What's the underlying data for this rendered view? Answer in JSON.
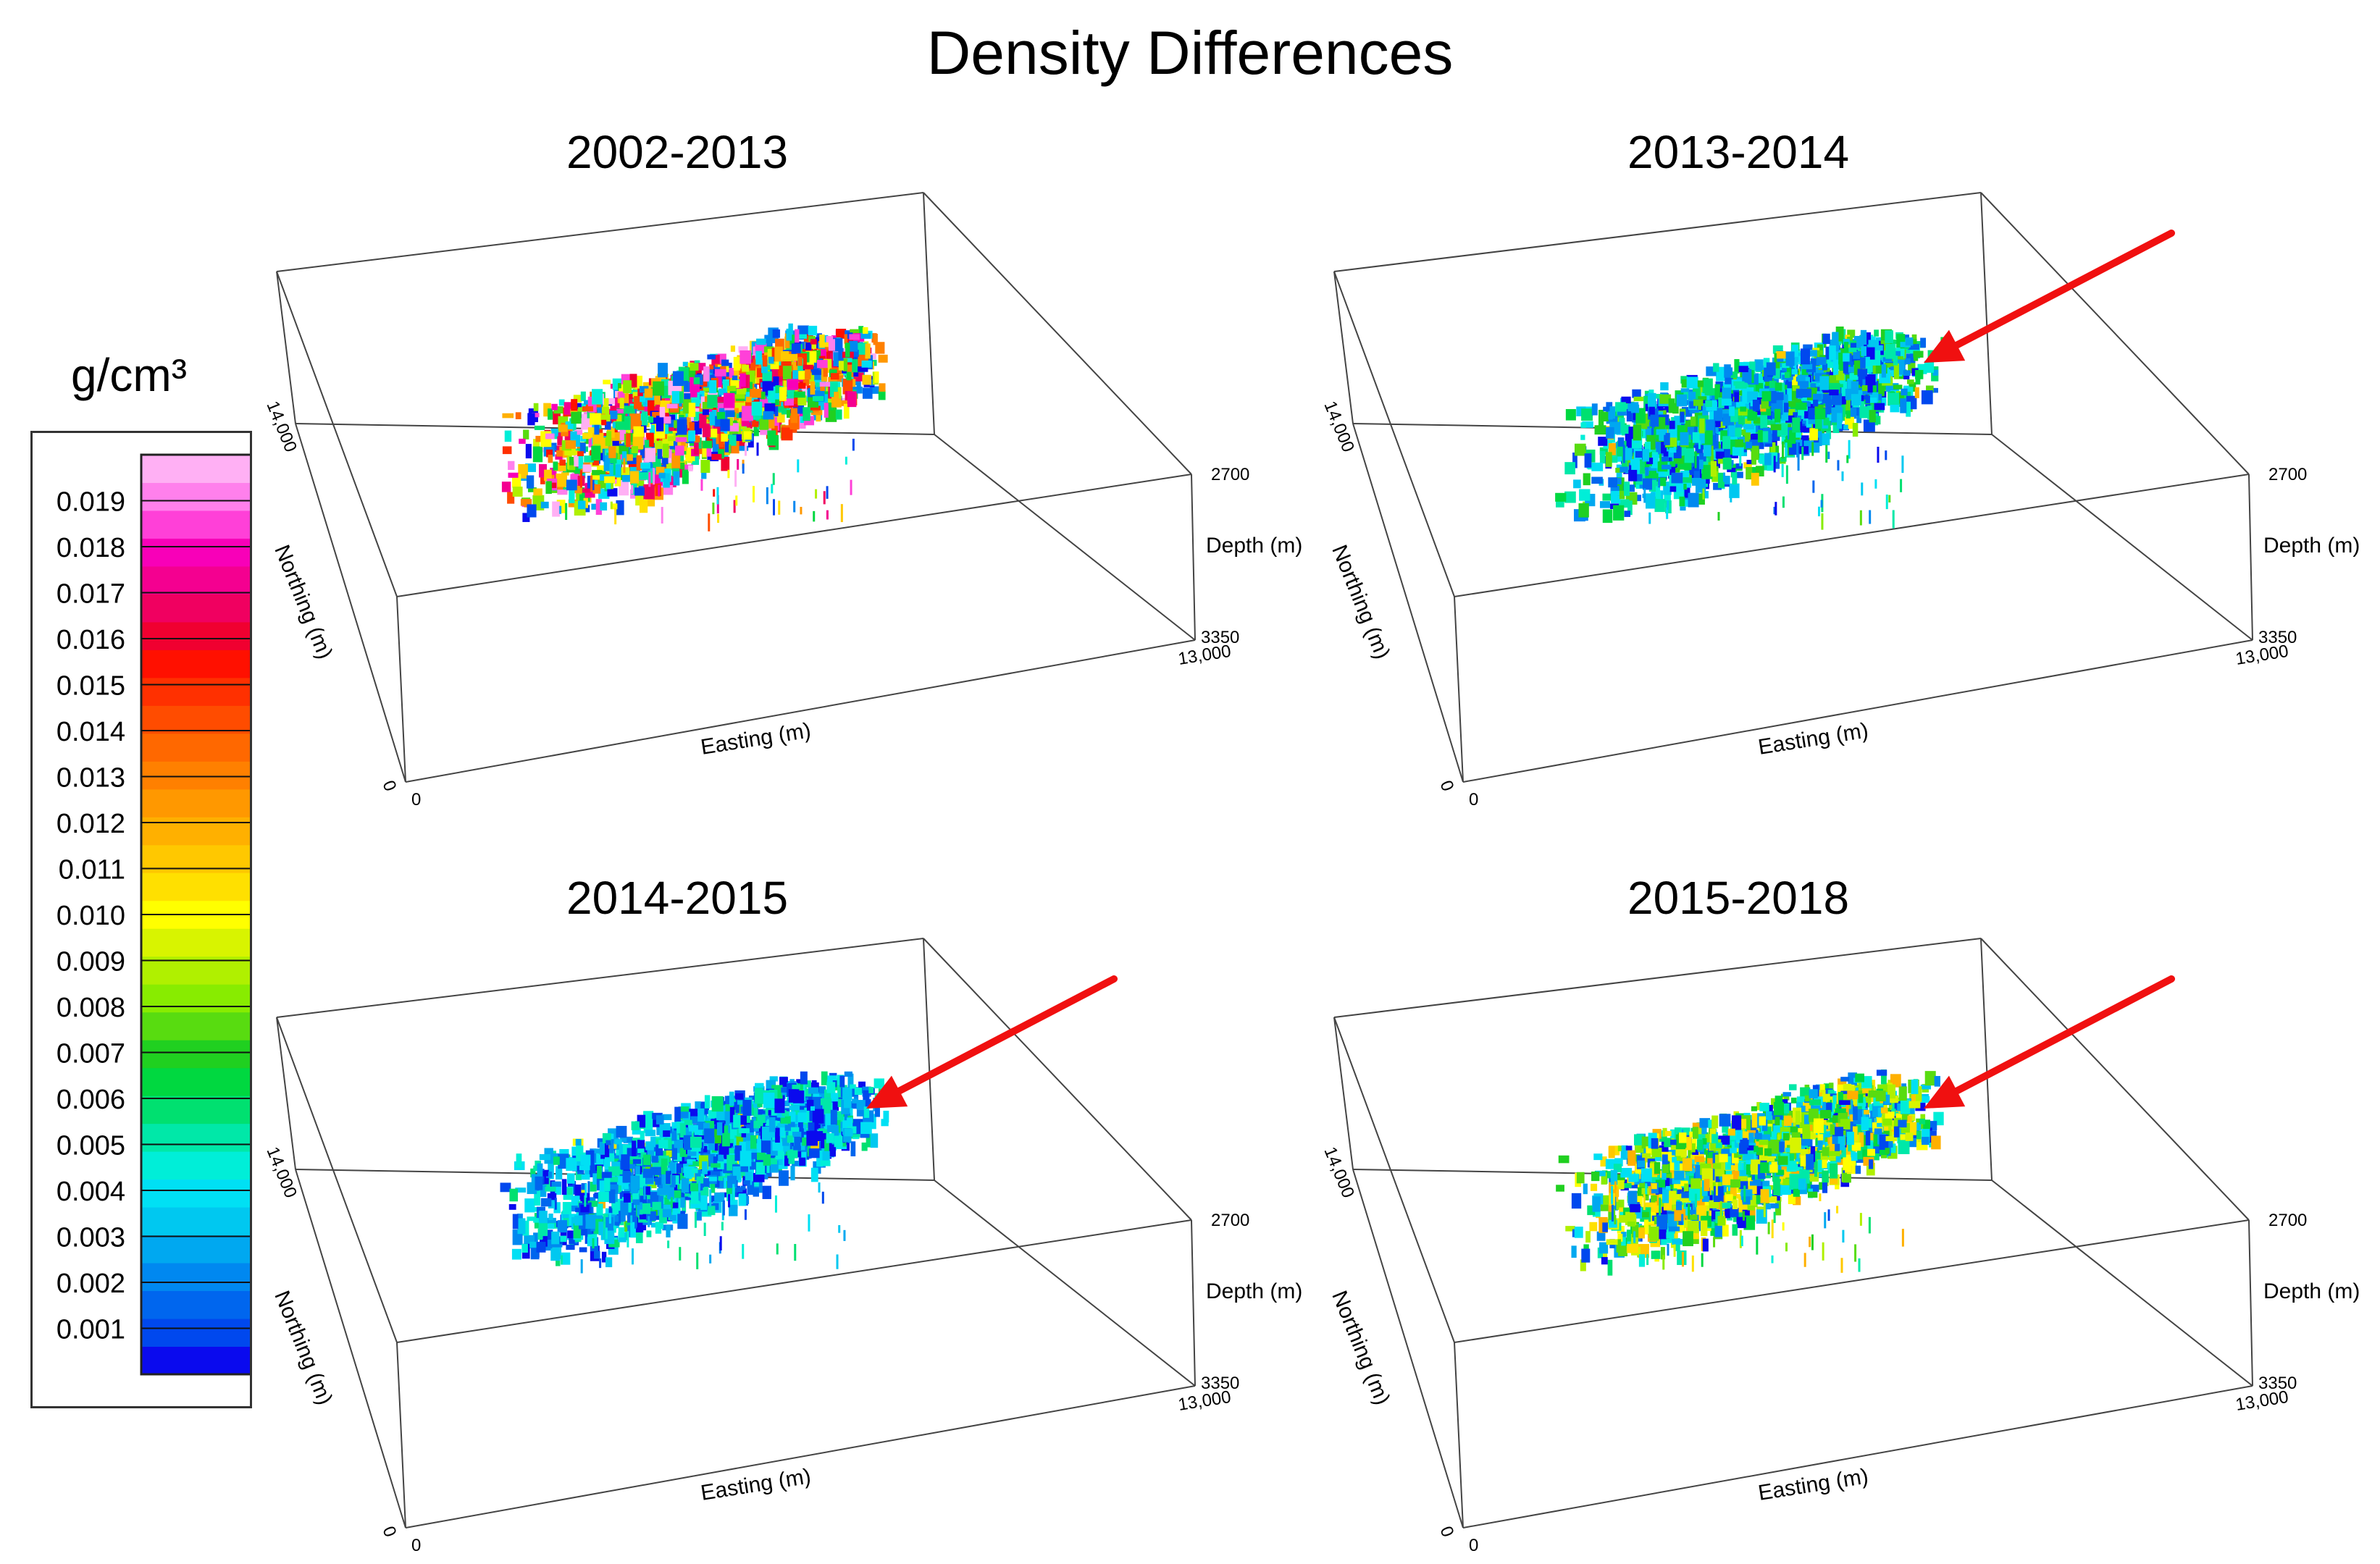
{
  "figure": {
    "title": "Density Differences",
    "unit": "g/cm³"
  },
  "colorbar": {
    "ticks": [
      "0.019",
      "0.018",
      "0.017",
      "0.016",
      "0.015",
      "0.014",
      "0.013",
      "0.012",
      "0.011",
      "0.010",
      "0.009",
      "0.008",
      "0.007",
      "0.006",
      "0.005",
      "0.004",
      "0.003",
      "0.002",
      "0.001"
    ],
    "range": [
      0.0,
      0.02
    ],
    "colors": [
      "#0a0aee",
      "#0048ee",
      "#0066ee",
      "#0088f0",
      "#00a8f0",
      "#00c8f0",
      "#00e0f4",
      "#00eed8",
      "#00e8a8",
      "#00e070",
      "#00d840",
      "#20d020",
      "#58dc10",
      "#88ec00",
      "#b0f000",
      "#d8f400",
      "#ffff00",
      "#ffe000",
      "#ffc800",
      "#ffb000",
      "#ff9800",
      "#ff8000",
      "#ff6800",
      "#ff4c00",
      "#ff3000",
      "#ff1000",
      "#f00030",
      "#f00060",
      "#f40090",
      "#f800b8",
      "#ff40d8",
      "#ff80ec",
      "#ffb0f4"
    ]
  },
  "chart_data": [
    {
      "type": "scatter",
      "chart_kind": "3d-voxel-scatter",
      "title": "2002-2013",
      "xlabel": "Easting (m)",
      "ylabel": "Northing (m)",
      "zlabel": "Depth (m)",
      "x_ticks": [
        "0",
        "13,000"
      ],
      "y_ticks": [
        "0",
        "14,000"
      ],
      "z_ticks": [
        "2700",
        "3350"
      ],
      "xlim": [
        0,
        13000
      ],
      "ylim": [
        0,
        14000
      ],
      "zlim": [
        2700,
        3350
      ],
      "color_range": [
        0.001,
        0.019
      ],
      "dominant_range": [
        0.0,
        0.02
      ],
      "cluster_easting": [
        2500,
        8200
      ],
      "cluster_northing": [
        8000,
        13000
      ],
      "annotation_arrow": false
    },
    {
      "type": "scatter",
      "chart_kind": "3d-voxel-scatter",
      "title": "2013-2014",
      "xlabel": "Easting (m)",
      "ylabel": "Northing (m)",
      "zlabel": "Depth (m)",
      "x_ticks": [
        "0",
        "13,000"
      ],
      "y_ticks": [
        "0",
        "14,000"
      ],
      "z_ticks": [
        "2700",
        "3350"
      ],
      "xlim": [
        0,
        13000
      ],
      "ylim": [
        0,
        14000
      ],
      "zlim": [
        2700,
        3350
      ],
      "color_range": [
        0.001,
        0.019
      ],
      "dominant_range": [
        0.0,
        0.008
      ],
      "cluster_easting": [
        2500,
        8500
      ],
      "cluster_northing": [
        7500,
        13000
      ],
      "annotation_arrow": true
    },
    {
      "type": "scatter",
      "chart_kind": "3d-voxel-scatter",
      "title": "2014-2015",
      "xlabel": "Easting (m)",
      "ylabel": "Northing (m)",
      "zlabel": "Depth (m)",
      "x_ticks": [
        "0",
        "13,000"
      ],
      "y_ticks": [
        "0",
        "14,000"
      ],
      "z_ticks": [
        "2700",
        "3350"
      ],
      "xlim": [
        0,
        13000
      ],
      "ylim": [
        0,
        14000
      ],
      "zlim": [
        2700,
        3350
      ],
      "color_range": [
        0.001,
        0.019
      ],
      "dominant_range": [
        0.0,
        0.006
      ],
      "cluster_easting": [
        2500,
        8500
      ],
      "cluster_northing": [
        7500,
        13000
      ],
      "annotation_arrow": true
    },
    {
      "type": "scatter",
      "chart_kind": "3d-voxel-scatter",
      "title": "2015-2018",
      "xlabel": "Easting (m)",
      "ylabel": "Northing (m)",
      "zlabel": "Depth (m)",
      "x_ticks": [
        "0",
        "13,000"
      ],
      "y_ticks": [
        "0",
        "14,000"
      ],
      "z_ticks": [
        "2700",
        "3350"
      ],
      "xlim": [
        0,
        13000
      ],
      "ylim": [
        0,
        14000
      ],
      "zlim": [
        2700,
        3350
      ],
      "color_range": [
        0.001,
        0.019
      ],
      "dominant_range": [
        0.0,
        0.012
      ],
      "cluster_easting": [
        2500,
        8500
      ],
      "cluster_northing": [
        7500,
        13000
      ],
      "annotation_arrow": true
    }
  ]
}
